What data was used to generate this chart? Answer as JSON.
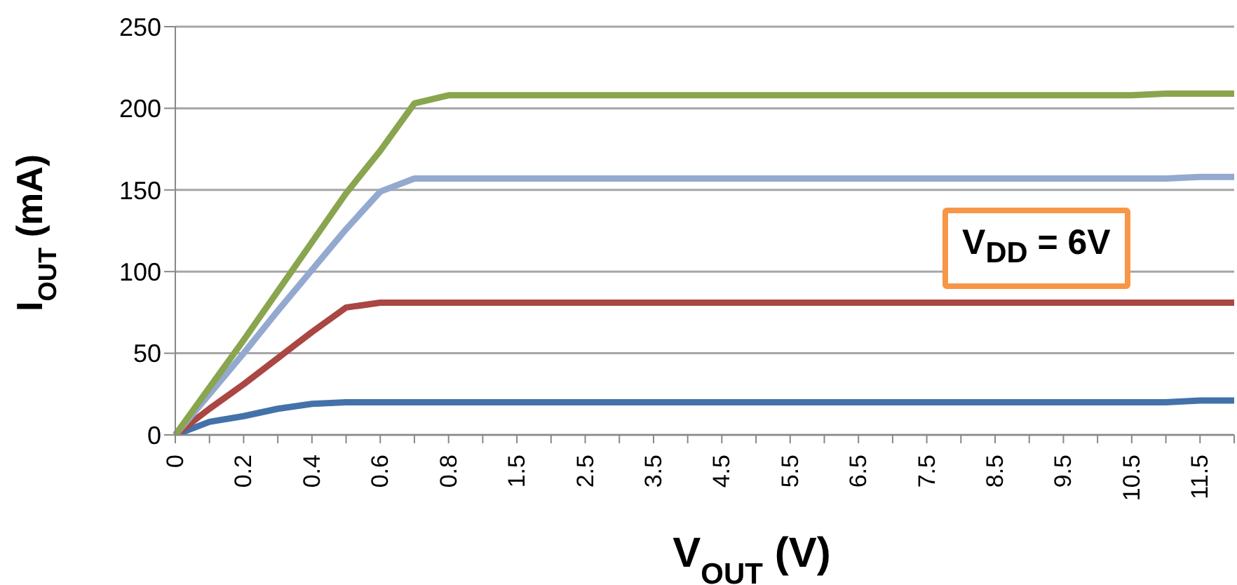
{
  "chart_data": {
    "type": "line",
    "xlabel": "V$_{OUT}$ (V)",
    "ylabel": "I$_{OUT}$ (mA)",
    "categories": [
      "0",
      null,
      "0.2",
      null,
      "0.4",
      null,
      "0.6",
      null,
      "0.8",
      null,
      "1.5",
      null,
      "2.5",
      null,
      "3.5",
      null,
      "4.5",
      null,
      "5.5",
      null,
      "6.5",
      null,
      "7.5",
      null,
      "8.5",
      null,
      "9.5",
      null,
      "10.5",
      null,
      "11.5",
      null
    ],
    "series": [
      {
        "color": "#4372aa",
        "values": [
          0,
          8,
          11.5,
          16,
          19,
          20,
          20,
          20,
          20,
          20,
          20,
          20,
          20,
          20,
          20,
          20,
          20,
          20,
          20,
          20,
          20,
          20,
          20,
          20,
          20,
          20,
          20,
          20,
          20,
          20,
          21,
          21
        ]
      },
      {
        "color": "#aa4643",
        "values": [
          0,
          16,
          31,
          47,
          63,
          78,
          81,
          81,
          81,
          81,
          81,
          81,
          81,
          81,
          81,
          81,
          81,
          81,
          81,
          81,
          81,
          81,
          81,
          81,
          81,
          81,
          81,
          81,
          81,
          81,
          81,
          81
        ]
      },
      {
        "color": "#93a9cf",
        "values": [
          0,
          25,
          50,
          76,
          101,
          126,
          149,
          157,
          157,
          157,
          157,
          157,
          157,
          157,
          157,
          157,
          157,
          157,
          157,
          157,
          157,
          157,
          157,
          157,
          157,
          157,
          157,
          157,
          157,
          157,
          158,
          158
        ]
      },
      {
        "color": "#89a54e",
        "values": [
          0,
          29,
          58,
          88,
          118,
          148,
          174,
          203,
          208,
          208,
          208,
          208,
          208,
          208,
          208,
          208,
          208,
          208,
          208,
          208,
          208,
          208,
          208,
          208,
          208,
          208,
          208,
          208,
          208,
          209,
          209,
          209
        ]
      }
    ],
    "ylim": [
      0,
      250
    ],
    "yticks": [
      0,
      50,
      100,
      150,
      200,
      250
    ],
    "grid": "y",
    "legend": false,
    "marker": "none",
    "line_style": "solid",
    "annotations": [
      "V$_{DD}$ = 6V"
    ]
  }
}
